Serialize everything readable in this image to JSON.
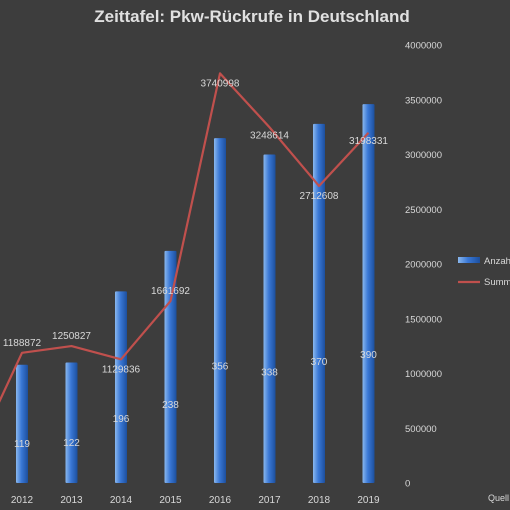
{
  "chart_data": {
    "type": "bar+line",
    "title": "Zeittafel: Pkw-Rückrufe in Deutschland",
    "categories": [
      "2012",
      "2013",
      "2014",
      "2015",
      "2016",
      "2017",
      "2018",
      "2019"
    ],
    "series": [
      {
        "name": "Anzah",
        "kind": "bar",
        "labels": [
          "119",
          "122",
          "196",
          "238",
          "356",
          "338",
          "370",
          "390"
        ],
        "values": [
          1080000,
          1100000,
          1750000,
          2120000,
          3150000,
          3000000,
          3280000,
          3460000
        ]
      },
      {
        "name": "Summ",
        "kind": "line",
        "values": [
          1188872,
          1250827,
          1129836,
          1661692,
          3740998,
          3248614,
          2712608,
          3198331
        ],
        "labels": [
          "1188872",
          "1250827",
          "1129836",
          "1661692",
          "3740998",
          "3248614",
          "2712608",
          "3198331"
        ]
      }
    ],
    "y_axis": {
      "side": "right",
      "ylim": [
        0,
        4000000
      ],
      "ticks": [
        "0",
        "500000",
        "1000000",
        "1500000",
        "2000000",
        "2500000",
        "3000000",
        "3500000",
        "4000000"
      ]
    },
    "grid": false,
    "legend": "right",
    "footer": "Quell",
    "colors": {
      "background": "#3d3d3d",
      "bar_top": "#8ab8ee",
      "bar_mid": "#3a78d6",
      "bar_bottom": "#1c4f9e",
      "line": "#c0504d",
      "text": "#d9d9d9",
      "title": "#e0e0e0"
    }
  }
}
